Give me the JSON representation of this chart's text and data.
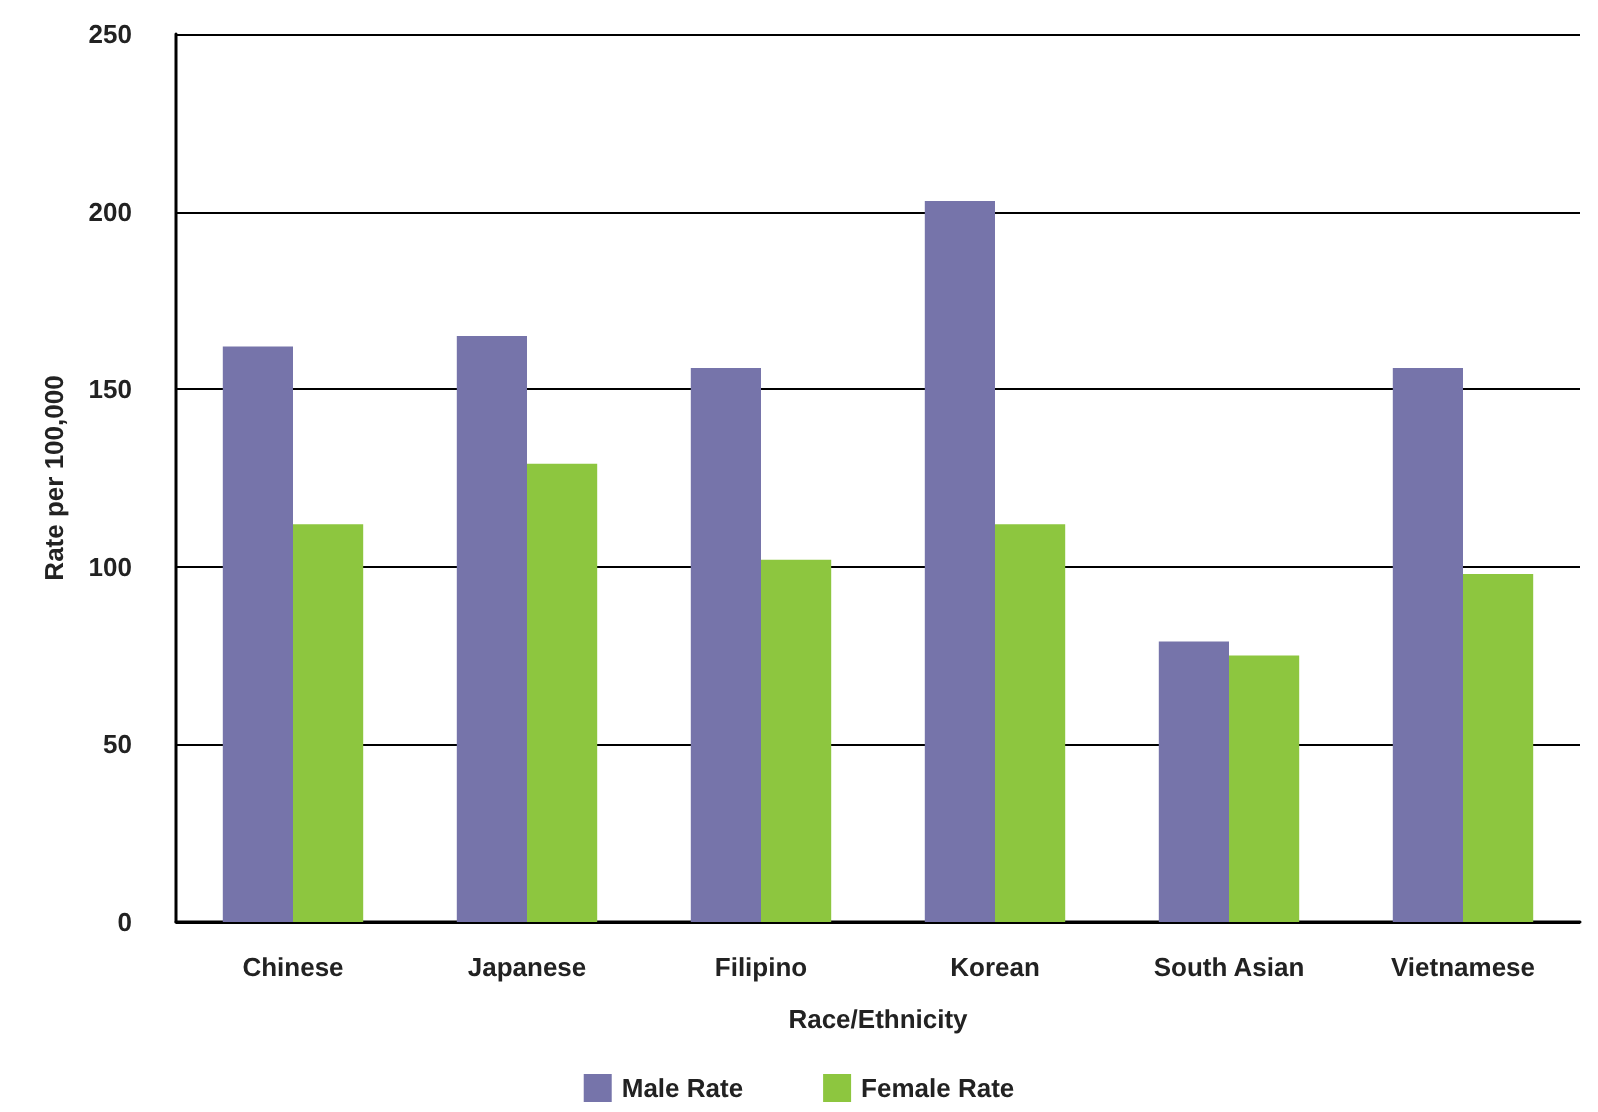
{
  "chart_data": {
    "type": "bar",
    "xlabel": "Race/Ethnicity",
    "ylabel": "Rate per 100,000",
    "categories": [
      "Chinese",
      "Japanese",
      "Filipino",
      "Korean",
      "South Asian",
      "Vietnamese"
    ],
    "series": [
      {
        "name": "Male Rate",
        "color": "#7674aa",
        "values": [
          162,
          165,
          156,
          203,
          79,
          156
        ]
      },
      {
        "name": "Female Rate",
        "color": "#8dc63f",
        "values": [
          112,
          129,
          102,
          112,
          75,
          98
        ]
      }
    ],
    "ylim": [
      0,
      250
    ],
    "yticks": [
      0,
      50,
      100,
      150,
      200,
      250
    ],
    "grid": "y",
    "legend": "bottom"
  }
}
